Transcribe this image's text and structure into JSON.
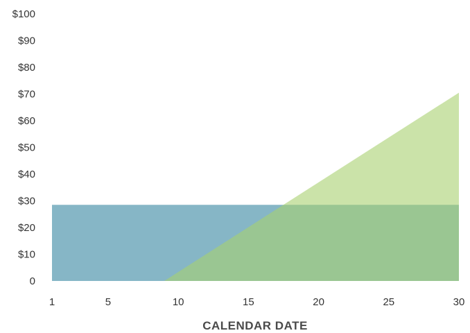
{
  "chart_data": {
    "type": "area",
    "title": "",
    "xlabel": "CALENDAR DATE",
    "ylabel": "",
    "xlim": [
      1,
      30
    ],
    "ylim": [
      0,
      100
    ],
    "x_ticks": [
      {
        "value": 1,
        "label": "1"
      },
      {
        "value": 5,
        "label": "5"
      },
      {
        "value": 10,
        "label": "10"
      },
      {
        "value": 15,
        "label": "15"
      },
      {
        "value": 20,
        "label": "20"
      },
      {
        "value": 25,
        "label": "25"
      },
      {
        "value": 30,
        "label": "30"
      }
    ],
    "y_ticks": [
      {
        "value": 0,
        "label": "0"
      },
      {
        "value": 10,
        "label": "$10"
      },
      {
        "value": 20,
        "label": "$20"
      },
      {
        "value": 30,
        "label": "$30"
      },
      {
        "value": 40,
        "label": "$40"
      },
      {
        "value": 50,
        "label": "$50"
      },
      {
        "value": 60,
        "label": "$60"
      },
      {
        "value": 70,
        "label": "$70"
      },
      {
        "value": 80,
        "label": "$80"
      },
      {
        "value": 90,
        "label": "$90"
      },
      {
        "value": 100,
        "label": "$100"
      }
    ],
    "grid": false,
    "legend": "none",
    "series": [
      {
        "color": "#86b6c6",
        "opacity": 1,
        "x": [
          1,
          30
        ],
        "y": [
          28.5,
          28.5
        ]
      },
      {
        "color": "#a9d170",
        "opacity": 0.6,
        "x": [
          9,
          30
        ],
        "y": [
          0,
          70.5
        ]
      }
    ]
  }
}
